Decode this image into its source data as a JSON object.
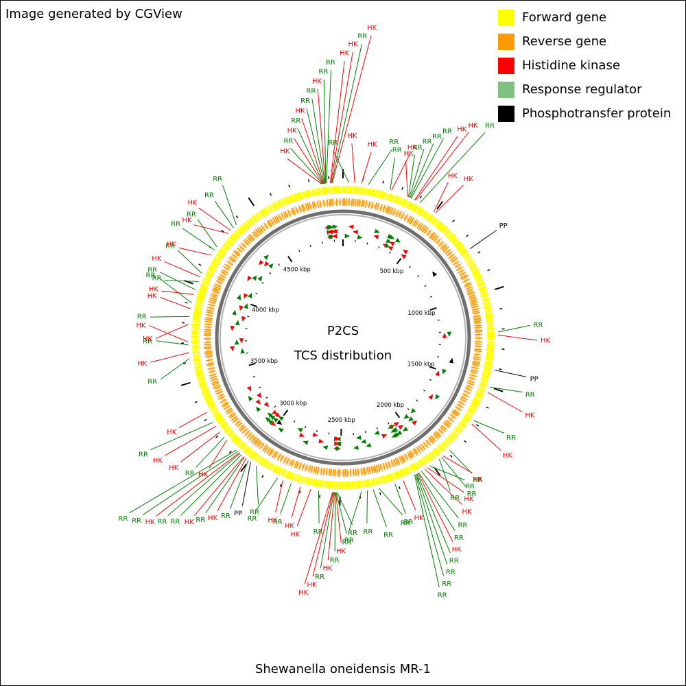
{
  "credit": "Image generated by CGView",
  "legend": [
    {
      "label": "Forward gene",
      "color": "#ffff00"
    },
    {
      "label": "Reverse gene",
      "color": "#ff9900"
    },
    {
      "label": "Histidine kinase",
      "color": "#ff0000"
    },
    {
      "label": "Response regulator",
      "color": "#80c080"
    },
    {
      "label": "Phosphotransfer protein",
      "color": "#000000"
    }
  ],
  "center": {
    "line1": "P2CS",
    "line2": "TCS distribution"
  },
  "organism": "Shewanella oneidensis MR-1",
  "genome_kbp": 4970,
  "scale_labels": [
    "500 kbp",
    "1000 kbp",
    "1500 kbp",
    "2000 kbp",
    "2500 kbp",
    "3000 kbp",
    "3500 kbp",
    "4000 kbp",
    "4500 kbp"
  ],
  "callout_colors": {
    "HK": "#ff0000",
    "RR": "#008000",
    "PP": "#000000"
  },
  "features": [
    {
      "type": "HK",
      "kbp": 4860
    },
    {
      "type": "RR",
      "kbp": 4865
    },
    {
      "type": "HK",
      "kbp": 4868
    },
    {
      "type": "RR",
      "kbp": 4870
    },
    {
      "type": "HK",
      "kbp": 4872
    },
    {
      "type": "RR",
      "kbp": 4875
    },
    {
      "type": "RR",
      "kbp": 4878
    },
    {
      "type": "HK",
      "kbp": 4880
    },
    {
      "type": "RR",
      "kbp": 4882
    },
    {
      "type": "RR",
      "kbp": 4885
    },
    {
      "type": "HK",
      "kbp": 4905
    },
    {
      "type": "HK",
      "kbp": 4908
    },
    {
      "type": "RR",
      "kbp": 4912
    },
    {
      "type": "HK",
      "kbp": 4915
    },
    {
      "type": "RR",
      "kbp": 30
    },
    {
      "type": "HK",
      "kbp": 60
    },
    {
      "type": "HK",
      "kbp": 95
    },
    {
      "type": "RR",
      "kbp": 130
    },
    {
      "type": "RR",
      "kbp": 245
    },
    {
      "type": "HK",
      "kbp": 252
    },
    {
      "type": "HK",
      "kbp": 340
    },
    {
      "type": "RR",
      "kbp": 345
    },
    {
      "type": "RR",
      "kbp": 350
    },
    {
      "type": "RR",
      "kbp": 355
    },
    {
      "type": "RR",
      "kbp": 360
    },
    {
      "type": "HK",
      "kbp": 380
    },
    {
      "type": "HK",
      "kbp": 385
    },
    {
      "type": "RR",
      "kbp": 410
    },
    {
      "type": "HK",
      "kbp": 495
    },
    {
      "type": "HK",
      "kbp": 505
    },
    {
      "type": "PP",
      "kbp": 760
    },
    {
      "type": "RR",
      "kbp": 1215
    },
    {
      "type": "HK",
      "kbp": 1230
    },
    {
      "type": "PP",
      "kbp": 1410
    },
    {
      "type": "RR",
      "kbp": 1500
    },
    {
      "type": "HK",
      "kbp": 1530
    },
    {
      "type": "RR",
      "kbp": 1690
    },
    {
      "type": "HK",
      "kbp": 1710
    },
    {
      "type": "RR",
      "kbp": 1885
    },
    {
      "type": "HK",
      "kbp": 1930
    },
    {
      "type": "RR",
      "kbp": 1940
    },
    {
      "type": "RR",
      "kbp": 1955
    },
    {
      "type": "RR",
      "kbp": 2015
    },
    {
      "type": "HK",
      "kbp": 2030
    },
    {
      "type": "HK",
      "kbp": 2045
    },
    {
      "type": "RR",
      "kbp": 2065
    },
    {
      "type": "RR",
      "kbp": 2080
    },
    {
      "type": "HK",
      "kbp": 2085
    },
    {
      "type": "RR",
      "kbp": 2090
    },
    {
      "type": "RR",
      "kbp": 2095
    },
    {
      "type": "RR",
      "kbp": 2100
    },
    {
      "type": "RR",
      "kbp": 2105
    },
    {
      "type": "HK",
      "kbp": 2170
    },
    {
      "type": "RR",
      "kbp": 2215
    },
    {
      "type": "RR",
      "kbp": 2300
    },
    {
      "type": "RR",
      "kbp": 2330
    },
    {
      "type": "RR",
      "kbp": 2360
    },
    {
      "type": "RR",
      "kbp": 2390
    },
    {
      "type": "RR",
      "kbp": 2515
    },
    {
      "type": "RR",
      "kbp": 2520
    },
    {
      "type": "HK",
      "kbp": 2522
    },
    {
      "type": "RR",
      "kbp": 2525
    },
    {
      "type": "HK",
      "kbp": 2528
    },
    {
      "type": "RR",
      "kbp": 2532
    },
    {
      "type": "HK",
      "kbp": 2535
    },
    {
      "type": "HK",
      "kbp": 2538
    },
    {
      "type": "RR",
      "kbp": 2610
    },
    {
      "type": "HK",
      "kbp": 2650
    },
    {
      "type": "HK",
      "kbp": 2705
    },
    {
      "type": "RR",
      "kbp": 2755
    },
    {
      "type": "HK",
      "kbp": 2800
    },
    {
      "type": "RR",
      "kbp": 2830
    },
    {
      "type": "RR",
      "kbp": 2955
    },
    {
      "type": "PP",
      "kbp": 2990
    },
    {
      "type": "RR",
      "kbp": 3005
    },
    {
      "type": "HK",
      "kbp": 3020
    },
    {
      "type": "RR",
      "kbp": 3030
    },
    {
      "type": "HK",
      "kbp": 3035
    },
    {
      "type": "RR",
      "kbp": 3050
    },
    {
      "type": "RR",
      "kbp": 3060
    },
    {
      "type": "HK",
      "kbp": 3065
    },
    {
      "type": "RR",
      "kbp": 3075
    },
    {
      "type": "RR",
      "kbp": 3085
    },
    {
      "type": "HK",
      "kbp": 3155
    },
    {
      "type": "RR",
      "kbp": 3175
    },
    {
      "type": "HK",
      "kbp": 3210
    },
    {
      "type": "HK",
      "kbp": 3245
    },
    {
      "type": "RR",
      "kbp": 3270
    },
    {
      "type": "HK",
      "kbp": 3330
    },
    {
      "type": "RR",
      "kbp": 3620
    },
    {
      "type": "HK",
      "kbp": 3650
    },
    {
      "type": "RR",
      "kbp": 3690
    },
    {
      "type": "HK",
      "kbp": 3705
    },
    {
      "type": "HK",
      "kbp": 3795
    },
    {
      "type": "RR",
      "kbp": 3835
    },
    {
      "type": "HK",
      "kbp": 3875
    },
    {
      "type": "RR",
      "kbp": 3905
    },
    {
      "type": "HK",
      "kbp": 3950
    },
    {
      "type": "RR",
      "kbp": 3975
    },
    {
      "type": "RR",
      "kbp": 4020
    },
    {
      "type": "HK",
      "kbp": 4045
    },
    {
      "type": "RR",
      "kbp": 4065
    },
    {
      "type": "HK",
      "kbp": 4170
    },
    {
      "type": "RR",
      "kbp": 4200
    },
    {
      "type": "RR",
      "kbp": 4220
    },
    {
      "type": "HK",
      "kbp": 4310
    },
    {
      "type": "HK",
      "kbp": 4330
    },
    {
      "type": "RR",
      "kbp": 4350
    },
    {
      "type": "RR",
      "kbp": 4370
    }
  ]
}
